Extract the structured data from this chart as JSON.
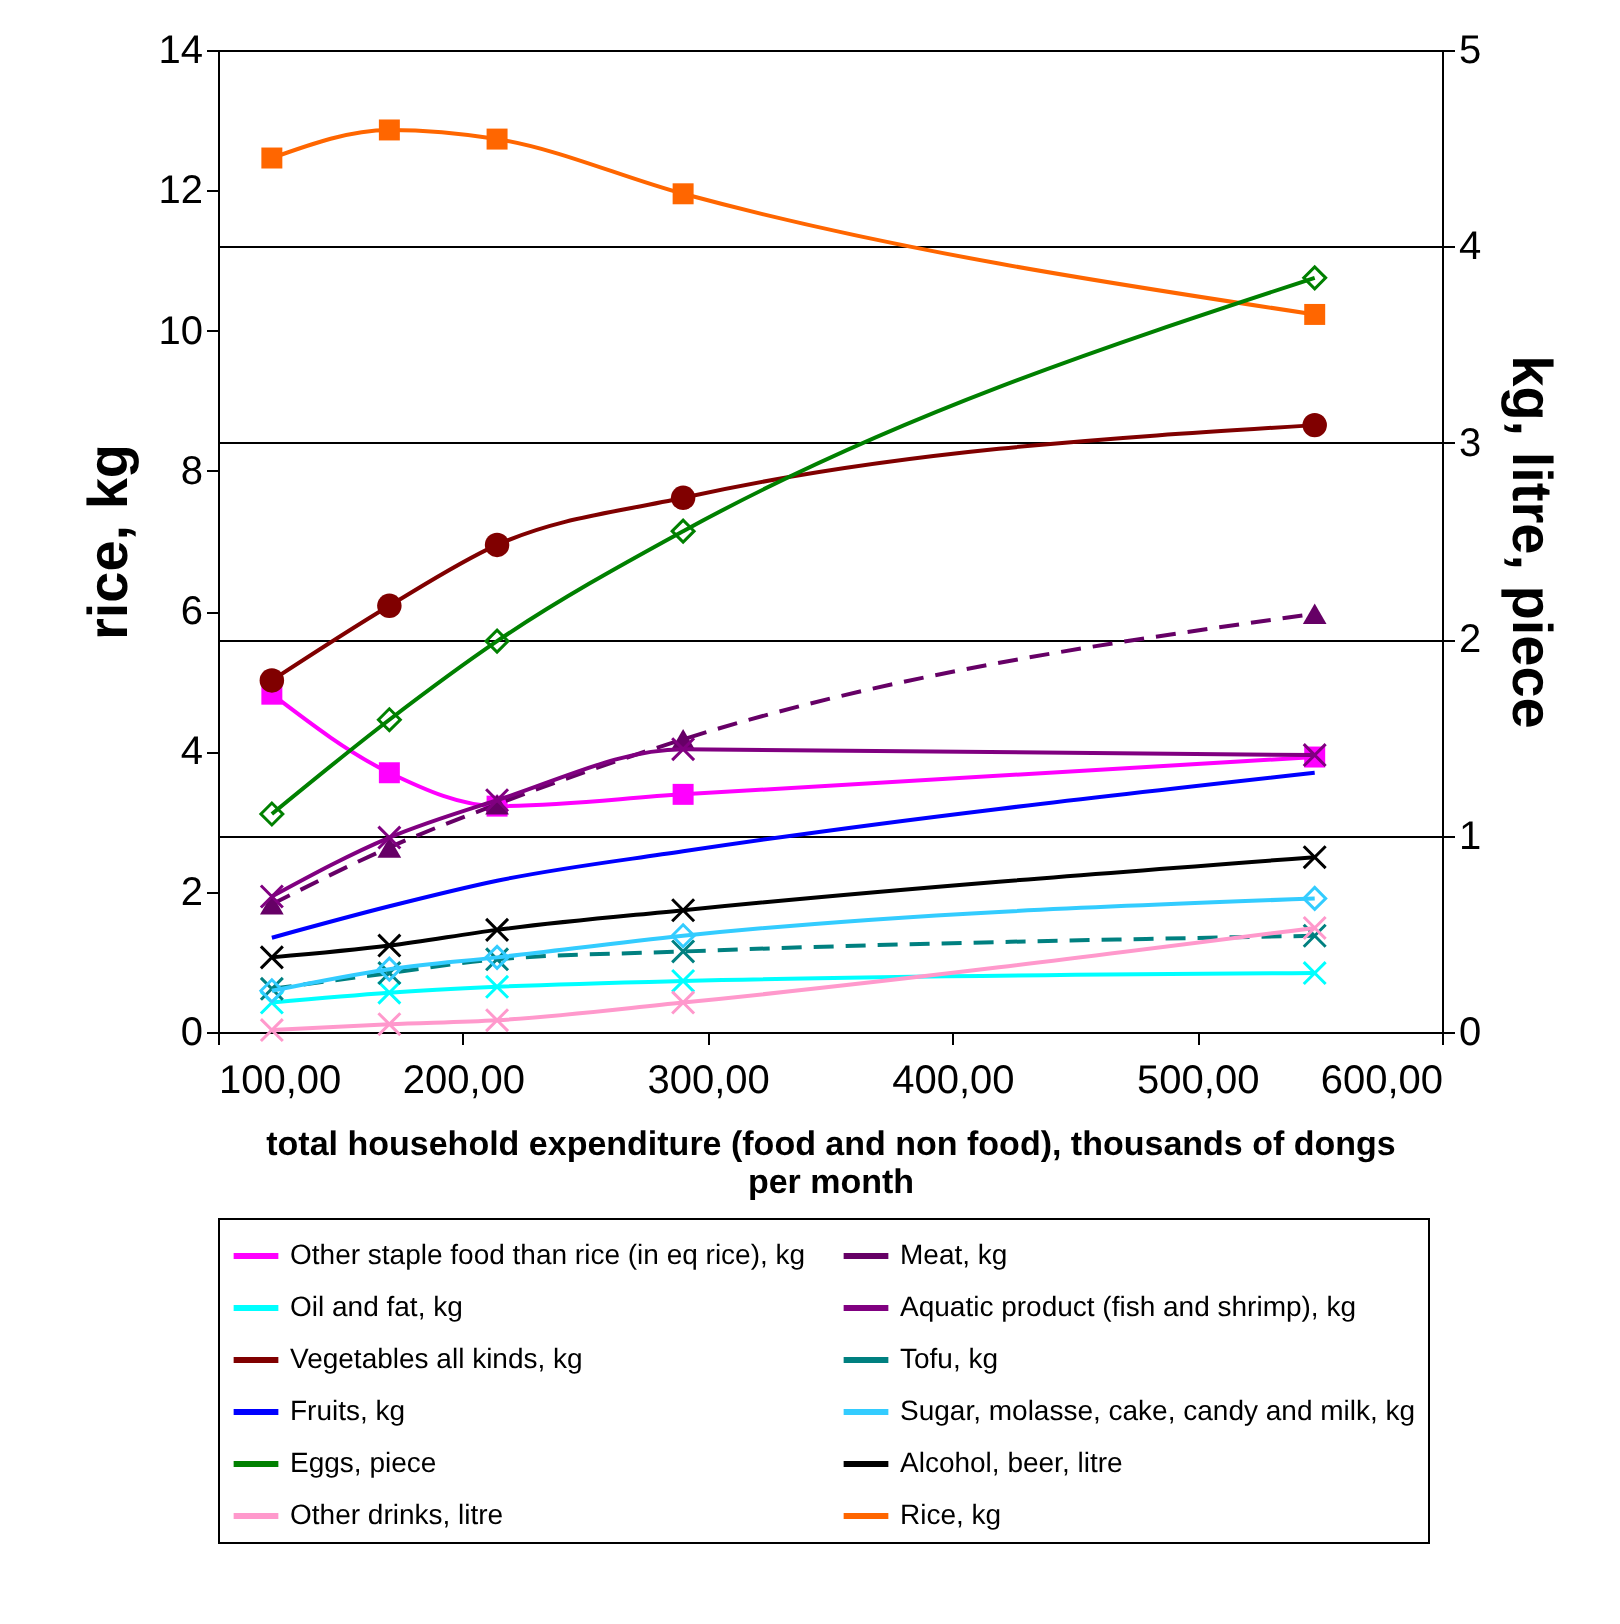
{
  "chart_data": {
    "type": "line",
    "xlabel": "total household expenditure (food and non food), thousands of dongs per month",
    "ylabel": "rice, kg",
    "y2label": "kg, litre, piece",
    "x": [
      122,
      170,
      214,
      290,
      548
    ],
    "xlim": [
      100,
      600
    ],
    "xticks": [
      {
        "value": 100,
        "label": "100,00"
      },
      {
        "value": 200,
        "label": "200,00"
      },
      {
        "value": 300,
        "label": "300,00"
      },
      {
        "value": 400,
        "label": "400,00"
      },
      {
        "value": 500,
        "label": "500,00"
      },
      {
        "value": 600,
        "label": "600,00"
      }
    ],
    "ylim": [
      0,
      14
    ],
    "yticks": [
      0,
      2,
      4,
      6,
      8,
      10,
      12,
      14
    ],
    "y2lim": [
      0,
      5
    ],
    "y2ticks": [
      0,
      1,
      2,
      3,
      4,
      5
    ],
    "grid": "y",
    "legend": "bottom",
    "series": [
      {
        "name": "Other staple food than rice (in eq rice), kg",
        "color": "#ff00ff",
        "axis": "y2",
        "marker": "square",
        "values": [
          1.72,
          1.32,
          1.15,
          1.21,
          1.4
        ]
      },
      {
        "name": "Meat, kg",
        "color": "#660066",
        "axis": "y2",
        "marker": "triangle",
        "line_style": "dashed",
        "values": [
          0.65,
          0.94,
          1.16,
          1.49,
          2.13
        ]
      },
      {
        "name": "Oil and fat, kg",
        "color": "#00ffff",
        "axis": "y2",
        "marker": "cross",
        "values": [
          0.15,
          0.2,
          0.23,
          0.26,
          0.3
        ]
      },
      {
        "name": "Aquatic product (fish and shrimp), kg",
        "color": "#800080",
        "axis": "y2",
        "marker": "cross",
        "values": [
          0.69,
          0.99,
          1.18,
          1.44,
          1.41
        ]
      },
      {
        "name": "Vegetables all kinds, kg",
        "color": "#800000",
        "axis": "y2",
        "marker": "circle",
        "values": [
          1.79,
          2.17,
          2.48,
          2.72,
          3.09
        ]
      },
      {
        "name": "Tofu, kg",
        "color": "#008080",
        "axis": "y2",
        "marker": "cross",
        "line_style": "dashed",
        "values": [
          0.22,
          0.3,
          0.37,
          0.41,
          0.49
        ]
      },
      {
        "name": "Fruits, kg",
        "color": "#0000ff",
        "axis": "y2",
        "marker": "none",
        "values": [
          0.48,
          0.64,
          0.77,
          0.92,
          1.32
        ]
      },
      {
        "name": "Sugar, molasse, cake, candy and milk, kg",
        "color": "#33ccff",
        "axis": "y2",
        "marker": "diamond",
        "values": [
          0.21,
          0.32,
          0.38,
          0.49,
          0.68
        ]
      },
      {
        "name": "Eggs, piece",
        "color": "#008000",
        "axis": "y2",
        "marker": "diamond",
        "values": [
          1.11,
          1.59,
          1.99,
          2.55,
          3.84
        ]
      },
      {
        "name": "Alcohol, beer, litre",
        "color": "#000000",
        "axis": "y2",
        "marker": "cross",
        "values": [
          0.38,
          0.44,
          0.52,
          0.62,
          0.89
        ]
      },
      {
        "name": "Other drinks, litre",
        "color": "#ff99cc",
        "axis": "y2",
        "marker": "cross",
        "values": [
          0.01,
          0.04,
          0.06,
          0.15,
          0.53
        ]
      },
      {
        "name": "Rice, kg",
        "color": "#ff6600",
        "axis": "y",
        "marker": "square",
        "values": [
          12.46,
          12.86,
          12.73,
          11.95,
          10.23
        ]
      }
    ]
  }
}
